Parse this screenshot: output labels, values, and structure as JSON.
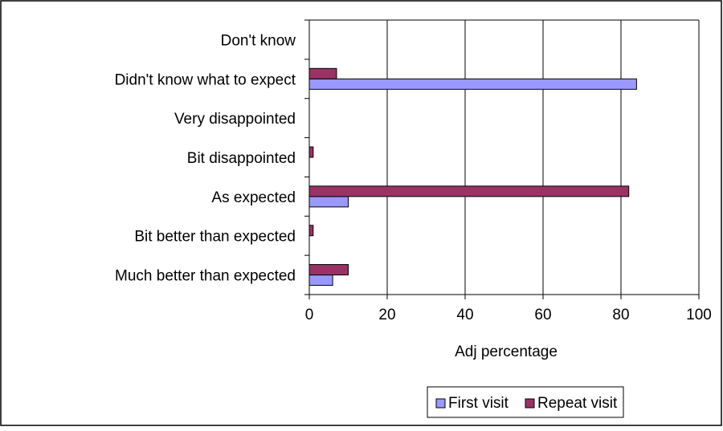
{
  "chart_data": {
    "type": "bar",
    "orientation": "horizontal",
    "title": "",
    "xlabel": "Adj percentage",
    "ylabel": "",
    "xlim": [
      0,
      100
    ],
    "xticks": [
      0,
      20,
      40,
      60,
      80,
      100
    ],
    "xtick_labels": [
      "0",
      "20",
      "40",
      "60",
      "80",
      "100"
    ],
    "grid": "vertical gridlines at each major tick",
    "legend_position": "bottom",
    "categories": [
      "Much better than expected",
      "Bit better than expected",
      "As expected",
      "Bit disappointed",
      "Very disappointed",
      "Didn't know what to expect",
      "Don't know"
    ],
    "series": [
      {
        "name": "First visit",
        "color": "#9999ff",
        "values": [
          6,
          0,
          10,
          0,
          0,
          84,
          0
        ]
      },
      {
        "name": "Repeat visit",
        "color": "#993366",
        "values": [
          10,
          1,
          82,
          1,
          0,
          7,
          0
        ]
      }
    ]
  }
}
